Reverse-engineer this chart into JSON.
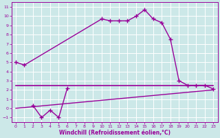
{
  "background_color": "#cce8e8",
  "grid_color": "#ffffff",
  "line_color": "#990099",
  "xlabel": "Windchill (Refroidissement éolien,°C)",
  "xlim": [
    -0.5,
    23.5
  ],
  "ylim": [
    -1.5,
    11.5
  ],
  "yticks": [
    -1,
    0,
    1,
    2,
    3,
    4,
    5,
    6,
    7,
    8,
    9,
    10,
    11
  ],
  "xticks": [
    0,
    1,
    2,
    3,
    4,
    5,
    6,
    7,
    8,
    9,
    10,
    11,
    12,
    13,
    14,
    15,
    16,
    17,
    18,
    19,
    20,
    21,
    22,
    23
  ],
  "line1_x": [
    0,
    1,
    10,
    11,
    12,
    13,
    14,
    15,
    16,
    17,
    18,
    19,
    20,
    21,
    22,
    23
  ],
  "line1_y": [
    5.0,
    4.7,
    9.7,
    9.5,
    9.5,
    9.5,
    10.0,
    10.7,
    9.7,
    9.3,
    7.5,
    3.0,
    2.5,
    2.5,
    2.5,
    2.1
  ],
  "line2_x": [
    0,
    23
  ],
  "line2_y": [
    2.5,
    2.5
  ],
  "line3_x": [
    2,
    3,
    4,
    5,
    6
  ],
  "line3_y": [
    0.3,
    -1.0,
    -0.2,
    -1.0,
    2.2
  ],
  "line4_x": [
    0,
    23
  ],
  "line4_y": [
    0.0,
    2.0
  ],
  "marker_x": [
    0,
    1,
    10,
    11,
    12,
    13,
    14,
    15,
    16,
    17,
    18,
    19,
    20,
    21,
    22,
    23
  ],
  "marker_y": [
    5.0,
    4.7,
    9.7,
    9.5,
    9.5,
    9.5,
    10.0,
    10.7,
    9.7,
    9.3,
    7.5,
    3.0,
    2.5,
    2.5,
    2.5,
    2.1
  ],
  "marker3_x": [
    2,
    3,
    4,
    5,
    6
  ],
  "marker3_y": [
    0.3,
    -1.0,
    -0.2,
    -1.0,
    2.2
  ]
}
